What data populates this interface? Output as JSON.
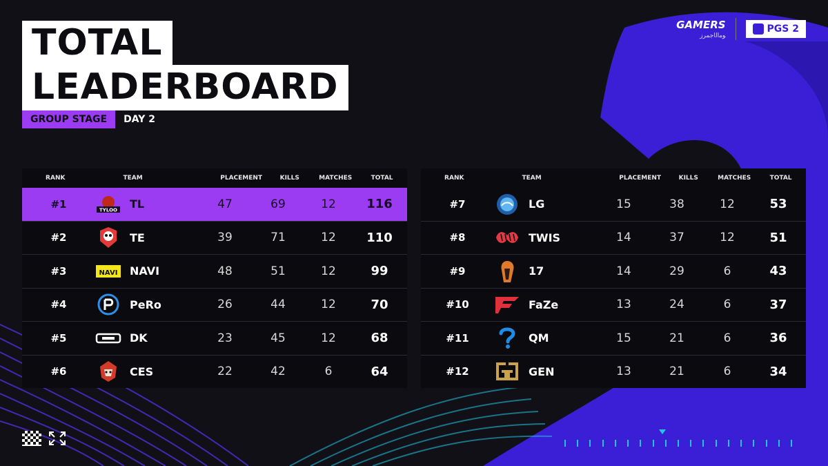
{
  "title": {
    "line1": "TOTAL",
    "line2": "LEADERBOARD"
  },
  "subtitle": {
    "stage": "GROUP STAGE",
    "day": "DAY 2"
  },
  "brand": {
    "gamers": "GAMERS",
    "gamers_sub": "ﻮﻣﺍﻟﺍﺟﻤﺮﺯ",
    "pgs": "PGS 2"
  },
  "colors": {
    "accent": "#9b3bf2",
    "blue": "#3a1fd6",
    "cyan": "#23c7e6",
    "bg": "#111016"
  },
  "headers": {
    "rank": "RANK",
    "team": "TEAM",
    "placement": "PLACEMENT",
    "kills": "KILLS",
    "matches": "MATCHES",
    "total": "TOTAL"
  },
  "left_rows": [
    {
      "rank": "#1",
      "team": "TL",
      "placement": "47",
      "kills": "69",
      "matches": "12",
      "total": "116",
      "logo": "tl-logo-icon",
      "logo_text": "TYLOO"
    },
    {
      "rank": "#2",
      "team": "TE",
      "placement": "39",
      "kills": "71",
      "matches": "12",
      "total": "110",
      "logo": "te-skull-logo-icon"
    },
    {
      "rank": "#3",
      "team": "NAVI",
      "placement": "48",
      "kills": "51",
      "matches": "12",
      "total": "99",
      "logo": "navi-logo-icon",
      "logo_text": "NAVI"
    },
    {
      "rank": "#4",
      "team": "PeRo",
      "placement": "26",
      "kills": "44",
      "matches": "12",
      "total": "70",
      "logo": "pero-logo-icon"
    },
    {
      "rank": "#5",
      "team": "DK",
      "placement": "23",
      "kills": "45",
      "matches": "12",
      "total": "68",
      "logo": "dk-logo-icon"
    },
    {
      "rank": "#6",
      "team": "CES",
      "placement": "22",
      "kills": "42",
      "matches": "6",
      "total": "64",
      "logo": "ces-logo-icon"
    }
  ],
  "right_rows": [
    {
      "rank": "#7",
      "team": "LG",
      "placement": "15",
      "kills": "38",
      "matches": "12",
      "total": "53",
      "logo": "lg-logo-icon"
    },
    {
      "rank": "#8",
      "team": "TWIS",
      "placement": "14",
      "kills": "37",
      "matches": "12",
      "total": "51",
      "logo": "twis-logo-icon"
    },
    {
      "rank": "#9",
      "team": "17",
      "placement": "14",
      "kills": "29",
      "matches": "6",
      "total": "43",
      "logo": "seventeen-logo-icon"
    },
    {
      "rank": "#10",
      "team": "FaZe",
      "placement": "13",
      "kills": "24",
      "matches": "6",
      "total": "37",
      "logo": "faze-logo-icon"
    },
    {
      "rank": "#11",
      "team": "QM",
      "placement": "15",
      "kills": "21",
      "matches": "6",
      "total": "36",
      "logo": "qm-logo-icon"
    },
    {
      "rank": "#12",
      "team": "GEN",
      "placement": "13",
      "kills": "21",
      "matches": "6",
      "total": "34",
      "logo": "gen-logo-icon"
    }
  ],
  "icons": {
    "checker": "checker-flag-icon",
    "expand": "expand-arrows-icon"
  }
}
